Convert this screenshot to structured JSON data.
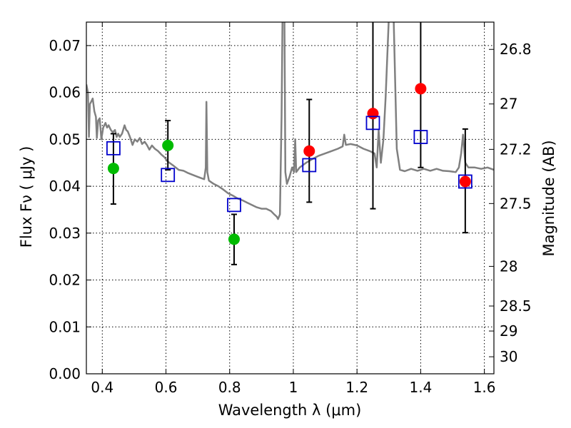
{
  "chart_data": {
    "type": "scatter",
    "xlabel": "Wavelength  λ (μm)",
    "ylabel": "Flux  Fν  ( μJy )",
    "y2label": "Magnitude (AB)",
    "xlim": [
      0.35,
      1.63
    ],
    "ylim": [
      0.0,
      0.075
    ],
    "grid": true,
    "x_ticks": [
      0.4,
      0.6,
      0.8,
      1.0,
      1.2,
      1.4,
      1.6
    ],
    "x_tick_labels": [
      "0.4",
      "0.6",
      "0.8",
      "1",
      "1.2",
      "1.4",
      "1.6"
    ],
    "y_ticks": [
      0.0,
      0.01,
      0.02,
      0.03,
      0.04,
      0.05,
      0.06,
      0.07
    ],
    "y_tick_labels": [
      "0.00",
      "0.01",
      "0.02",
      "0.03",
      "0.04",
      "0.05",
      "0.06",
      "0.07"
    ],
    "y2_tick_labels": [
      "26.8",
      "27",
      "27.2",
      "27.5",
      "28",
      "28.5",
      "29",
      "30"
    ],
    "y2_tick_values": [
      26.8,
      27.0,
      27.2,
      27.5,
      28.0,
      28.5,
      29.0,
      30.0
    ],
    "series": [
      {
        "marker": "circle",
        "color": "#00bb00",
        "points": [
          {
            "x": 0.435,
            "y": 0.0438
          },
          {
            "x": 0.606,
            "y": 0.0487
          },
          {
            "x": 0.814,
            "y": 0.0287
          }
        ]
      },
      {
        "marker": "circle",
        "color": "#ff0000",
        "points": [
          {
            "x": 1.05,
            "y": 0.0475
          },
          {
            "x": 1.25,
            "y": 0.0555
          },
          {
            "x": 1.4,
            "y": 0.0608
          },
          {
            "x": 1.54,
            "y": 0.041
          }
        ]
      },
      {
        "marker": "open-square",
        "color": "#0000cc",
        "points": [
          {
            "x": 0.435,
            "y": 0.0481
          },
          {
            "x": 0.606,
            "y": 0.0424
          },
          {
            "x": 0.814,
            "y": 0.036
          },
          {
            "x": 1.05,
            "y": 0.0445
          },
          {
            "x": 1.25,
            "y": 0.0535
          },
          {
            "x": 1.4,
            "y": 0.0505
          },
          {
            "x": 1.54,
            "y": 0.041
          }
        ]
      }
    ],
    "error_bars": [
      {
        "x": 0.435,
        "low": 0.0362,
        "high": 0.0512
      },
      {
        "x": 0.606,
        "low": 0.0435,
        "high": 0.054
      },
      {
        "x": 0.814,
        "low": 0.0233,
        "high": 0.034
      },
      {
        "x": 1.05,
        "low": 0.0366,
        "high": 0.0585
      },
      {
        "x": 1.25,
        "low": 0.0352,
        "high": 0.076
      },
      {
        "x": 1.4,
        "low": 0.044,
        "high": 0.076
      },
      {
        "x": 1.54,
        "low": 0.0301,
        "high": 0.0522
      }
    ],
    "model_spectrum": {
      "color": "#808080",
      "points": [
        [
          0.35,
          0.0617
        ],
        [
          0.355,
          0.06
        ],
        [
          0.358,
          0.0505
        ],
        [
          0.361,
          0.0575
        ],
        [
          0.365,
          0.058
        ],
        [
          0.37,
          0.0587
        ],
        [
          0.375,
          0.056
        ],
        [
          0.38,
          0.0548
        ],
        [
          0.383,
          0.0503
        ],
        [
          0.387,
          0.054
        ],
        [
          0.392,
          0.0545
        ],
        [
          0.397,
          0.05
        ],
        [
          0.403,
          0.0525
        ],
        [
          0.41,
          0.0535
        ],
        [
          0.415,
          0.0525
        ],
        [
          0.42,
          0.053
        ],
        [
          0.427,
          0.052
        ],
        [
          0.433,
          0.0515
        ],
        [
          0.44,
          0.052
        ],
        [
          0.445,
          0.0505
        ],
        [
          0.45,
          0.0512
        ],
        [
          0.455,
          0.0505
        ],
        [
          0.462,
          0.0512
        ],
        [
          0.47,
          0.053
        ],
        [
          0.475,
          0.052
        ],
        [
          0.48,
          0.0517
        ],
        [
          0.487,
          0.0505
        ],
        [
          0.495,
          0.0488
        ],
        [
          0.502,
          0.05
        ],
        [
          0.51,
          0.0495
        ],
        [
          0.518,
          0.0503
        ],
        [
          0.525,
          0.049
        ],
        [
          0.533,
          0.0495
        ],
        [
          0.54,
          0.0488
        ],
        [
          0.548,
          0.0478
        ],
        [
          0.556,
          0.0487
        ],
        [
          0.565,
          0.048
        ],
        [
          0.575,
          0.0475
        ],
        [
          0.585,
          0.0468
        ],
        [
          0.595,
          0.0462
        ],
        [
          0.605,
          0.0453
        ],
        [
          0.615,
          0.0448
        ],
        [
          0.625,
          0.0443
        ],
        [
          0.64,
          0.0435
        ],
        [
          0.655,
          0.0433
        ],
        [
          0.67,
          0.0428
        ],
        [
          0.685,
          0.0424
        ],
        [
          0.7,
          0.042
        ],
        [
          0.712,
          0.0417
        ],
        [
          0.72,
          0.0415
        ],
        [
          0.725,
          0.044
        ],
        [
          0.727,
          0.058
        ],
        [
          0.73,
          0.043
        ],
        [
          0.735,
          0.0412
        ],
        [
          0.75,
          0.0405
        ],
        [
          0.765,
          0.04
        ],
        [
          0.78,
          0.0393
        ],
        [
          0.795,
          0.0385
        ],
        [
          0.81,
          0.038
        ],
        [
          0.825,
          0.0374
        ],
        [
          0.84,
          0.037
        ],
        [
          0.855,
          0.0365
        ],
        [
          0.87,
          0.036
        ],
        [
          0.885,
          0.0355
        ],
        [
          0.9,
          0.0352
        ],
        [
          0.915,
          0.0352
        ],
        [
          0.93,
          0.0347
        ],
        [
          0.94,
          0.034
        ],
        [
          0.948,
          0.0335
        ],
        [
          0.952,
          0.033
        ],
        [
          0.958,
          0.034
        ],
        [
          0.963,
          0.055
        ],
        [
          0.966,
          0.076
        ],
        [
          0.972,
          0.076
        ],
        [
          0.975,
          0.043
        ],
        [
          0.98,
          0.0405
        ],
        [
          0.988,
          0.042
        ],
        [
          0.996,
          0.044
        ],
        [
          1.002,
          0.043
        ],
        [
          1.006,
          0.05
        ],
        [
          1.009,
          0.043
        ],
        [
          1.02,
          0.044
        ],
        [
          1.04,
          0.045
        ],
        [
          1.06,
          0.0458
        ],
        [
          1.08,
          0.0465
        ],
        [
          1.1,
          0.047
        ],
        [
          1.12,
          0.0475
        ],
        [
          1.14,
          0.048
        ],
        [
          1.155,
          0.0485
        ],
        [
          1.16,
          0.051
        ],
        [
          1.165,
          0.0488
        ],
        [
          1.18,
          0.049
        ],
        [
          1.2,
          0.0487
        ],
        [
          1.22,
          0.048
        ],
        [
          1.24,
          0.0475
        ],
        [
          1.255,
          0.047
        ],
        [
          1.262,
          0.044
        ],
        [
          1.268,
          0.052
        ],
        [
          1.275,
          0.045
        ],
        [
          1.283,
          0.05
        ],
        [
          1.29,
          0.059
        ],
        [
          1.3,
          0.076
        ],
        [
          1.315,
          0.076
        ],
        [
          1.325,
          0.048
        ],
        [
          1.335,
          0.0435
        ],
        [
          1.35,
          0.0432
        ],
        [
          1.37,
          0.0437
        ],
        [
          1.39,
          0.0433
        ],
        [
          1.41,
          0.0437
        ],
        [
          1.43,
          0.0433
        ],
        [
          1.45,
          0.0437
        ],
        [
          1.47,
          0.0433
        ],
        [
          1.49,
          0.0432
        ],
        [
          1.51,
          0.043
        ],
        [
          1.52,
          0.044
        ],
        [
          1.527,
          0.047
        ],
        [
          1.533,
          0.051
        ],
        [
          1.54,
          0.045
        ],
        [
          1.55,
          0.044
        ],
        [
          1.57,
          0.044
        ],
        [
          1.59,
          0.0437
        ],
        [
          1.61,
          0.044
        ],
        [
          1.63,
          0.0435
        ]
      ]
    }
  }
}
